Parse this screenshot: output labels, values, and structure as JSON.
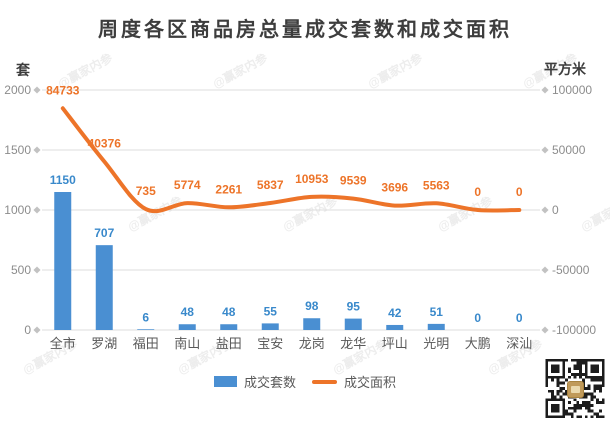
{
  "title": "周度各区商品房总量成交套数和成交面积",
  "watermark": {
    "text": "@赢家内参"
  },
  "legend": {
    "bar_label": "成交套数",
    "line_label": "成交面积"
  },
  "colors": {
    "bar": "#4A8FD2",
    "bar_label": "#3989CB",
    "line": "#ED7429",
    "line_label": "#ED7429",
    "grid": "#DCDCDC",
    "tick_marker": "#C2C2C2",
    "tick_text": "#8C8C8C",
    "category_text": "#595959",
    "qr_dark": "#1c1c1c"
  },
  "chart_data": {
    "type": "combo_bar_line",
    "title": "周度各区商品房总量成交套数和成交面积",
    "categories": [
      "全市",
      "罗湖",
      "福田",
      "南山",
      "盐田",
      "宝安",
      "龙岗",
      "龙华",
      "坪山",
      "光明",
      "大鹏",
      "深汕"
    ],
    "series": [
      {
        "name": "成交套数",
        "type": "bar",
        "axis": "left",
        "values": [
          1150,
          707,
          6,
          48,
          48,
          55,
          98,
          95,
          42,
          51,
          0,
          0
        ]
      },
      {
        "name": "成交面积",
        "type": "line",
        "axis": "right",
        "values": [
          84733,
          40376,
          735,
          5774,
          2261,
          5837,
          10953,
          9539,
          3696,
          5563,
          0,
          0
        ]
      }
    ],
    "left_axis": {
      "label": "套",
      "min": 0,
      "max": 2000,
      "ticks": [
        0,
        500,
        1000,
        1500,
        2000
      ]
    },
    "right_axis": {
      "label": "平方米",
      "min": -100000,
      "max": 100000,
      "ticks": [
        -100000,
        -50000,
        0,
        50000,
        100000
      ]
    },
    "grid": true,
    "legend_position": "bottom",
    "data_labels": true
  }
}
